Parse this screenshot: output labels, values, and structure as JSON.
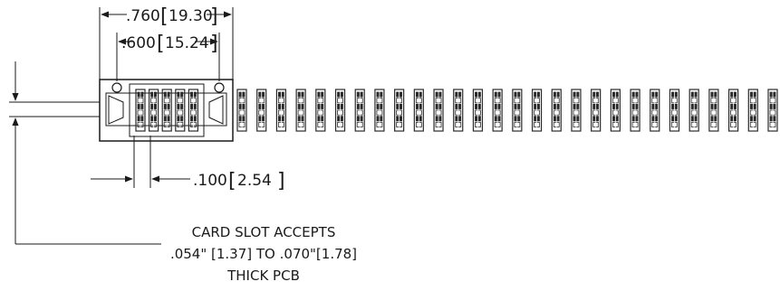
{
  "dimensions": {
    "overall_width": {
      "inch": ".760",
      "mm": "19.30"
    },
    "mount_hole_spacing": {
      "inch": ".600",
      "mm": "15.24"
    },
    "pitch": {
      "inch": ".100",
      "mm": "2.54"
    }
  },
  "note": {
    "line1": "CARD SLOT ACCEPTS",
    "line2": ".054\" [1.37] TO .070\"[1.78]",
    "line3": "THICK PCB"
  },
  "colors": {
    "line": "#1a1a1a",
    "contact": "#2b2b2b"
  },
  "connector": {
    "positions_shown_in_housing": 5,
    "continuation_contacts": 28
  }
}
